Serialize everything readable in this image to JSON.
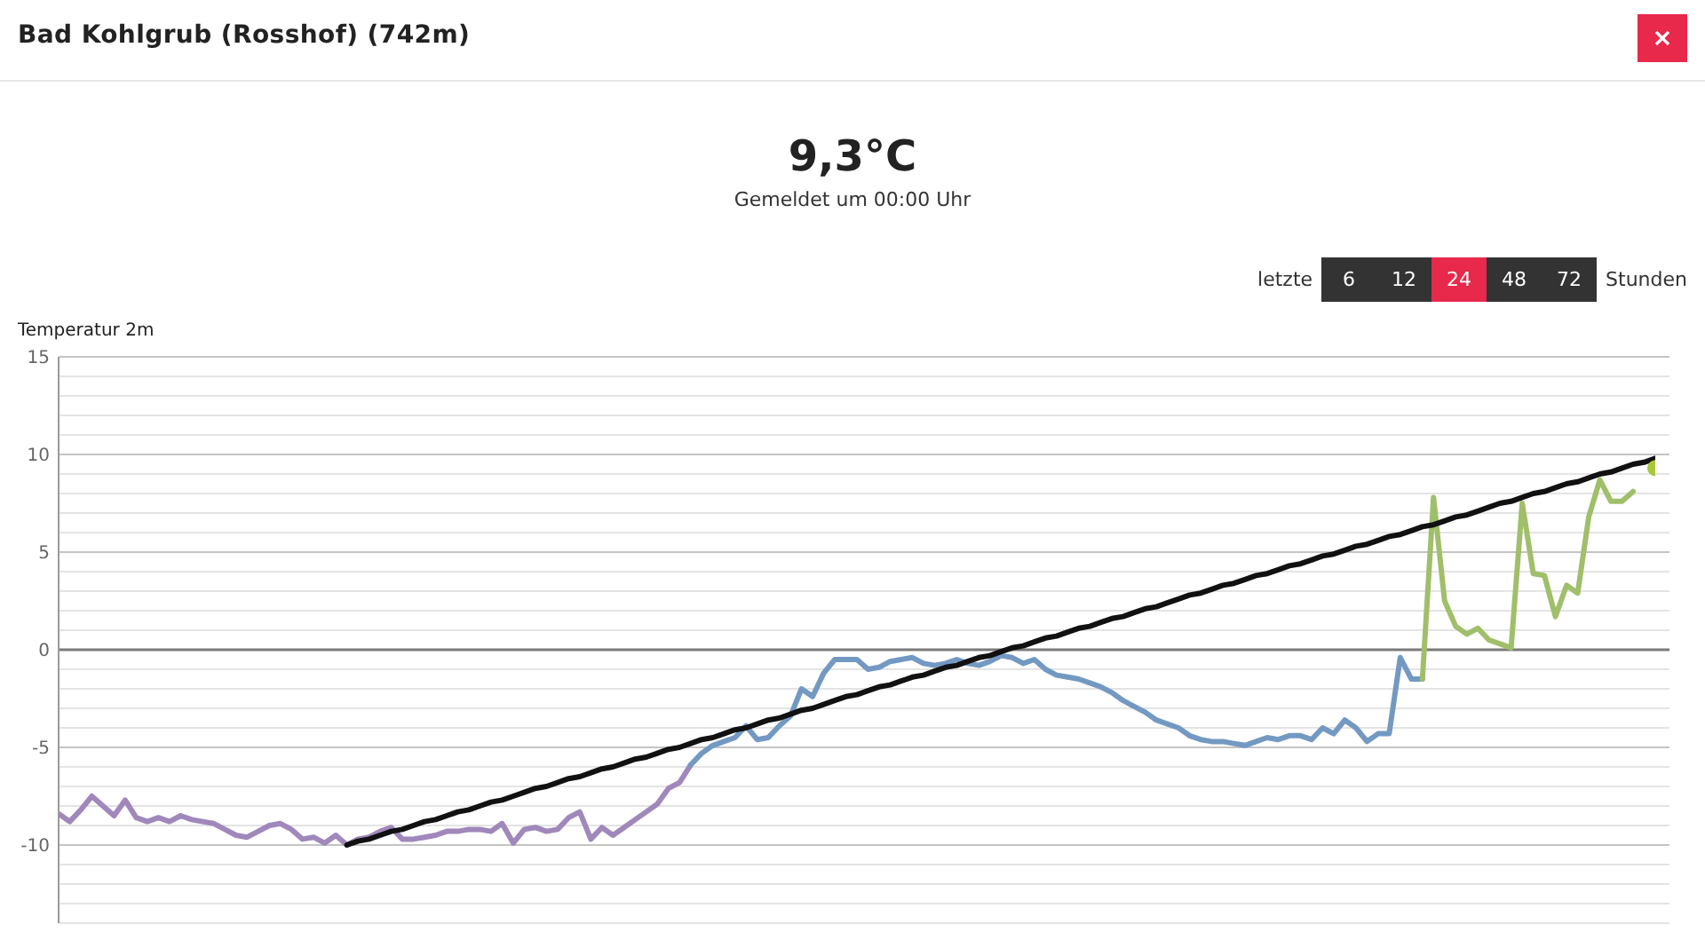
{
  "chart_data": {
    "type": "line",
    "title": "Bad Kohlgrub (Rosshof) (742m)",
    "subtitle": "9,3°C",
    "ylabel": "Temperatur 2m",
    "annotations": [
      "Gemeldet um 00:00 Uhr",
      "letzte",
      "6",
      "12",
      "24",
      "48",
      "72",
      "Stunden"
    ],
    "categories": [
      null,
      null,
      null,
      null,
      null,
      null,
      null,
      null,
      null,
      null,
      null,
      null,
      null,
      null,
      null,
      null,
      null,
      null,
      null,
      null,
      null,
      null,
      null,
      null,
      null,
      null,
      null,
      null,
      null,
      null,
      null,
      null,
      null,
      null,
      null,
      null,
      null,
      null,
      null,
      null,
      null,
      null,
      null,
      null,
      null,
      null,
      null,
      null,
      null,
      null,
      null,
      null,
      null,
      null,
      null,
      null,
      null,
      null,
      null,
      null,
      null,
      null,
      null,
      null,
      null,
      null,
      null,
      null,
      null,
      null,
      null,
      null,
      null,
      null,
      null,
      null,
      null,
      null,
      null,
      null,
      null,
      null,
      null,
      null,
      null,
      null,
      null,
      null,
      null,
      null,
      null,
      null,
      null,
      null,
      null,
      null,
      null,
      null,
      null,
      null,
      null,
      null,
      null,
      null,
      null,
      null,
      null,
      null,
      null,
      null,
      null,
      null,
      null,
      null,
      null,
      null,
      null,
      null,
      null,
      null,
      null,
      null,
      null,
      null,
      null,
      null,
      null,
      null,
      null,
      null,
      null,
      null,
      null,
      null,
      null,
      null,
      null,
      null,
      null,
      null,
      null,
      null,
      null,
      null,
      null
    ],
    "series": [
      {
        "color": "#a088bb",
        "values": [
          -8.4,
          -8.8,
          -8.2,
          -7.5,
          -8.0,
          -8.5,
          -7.7,
          -8.6,
          -8.8,
          -8.6,
          -8.8,
          -8.5,
          -8.7,
          -8.8,
          -8.9,
          -9.2,
          -9.5,
          -9.6,
          -9.3,
          -9.0,
          -8.9,
          -9.2,
          -9.7,
          -9.6,
          -9.9,
          -9.5,
          -10.0,
          -9.7,
          -9.6,
          -9.3,
          -9.1,
          -9.7,
          -9.7,
          -9.6,
          -9.5,
          -9.3,
          -9.3,
          -9.2,
          -9.2,
          -9.3,
          -8.9,
          -9.9,
          -9.2,
          -9.1,
          -9.3,
          -9.2,
          -8.6,
          -8.3,
          -9.7,
          -9.1,
          -9.5,
          -9.1,
          -8.7,
          -8.3,
          -7.9,
          -7.1,
          -6.8,
          -5.9,
          null,
          null,
          null,
          null,
          null,
          null,
          null,
          null,
          null,
          null,
          null,
          null,
          null,
          null,
          null,
          null,
          null,
          null,
          null,
          null,
          null,
          null,
          null,
          null,
          null,
          null,
          null,
          null,
          null,
          null,
          null,
          null,
          null,
          null,
          null,
          null,
          null,
          null,
          null,
          null,
          null,
          null,
          null,
          null,
          null,
          null,
          null,
          null,
          null,
          null,
          null,
          null,
          null,
          null,
          null,
          null,
          null,
          null,
          null,
          null,
          null,
          null,
          null,
          null,
          null,
          null,
          null,
          null,
          null,
          null,
          null,
          null,
          null,
          null,
          null,
          null,
          null,
          null,
          null,
          null,
          null,
          null,
          null,
          null,
          null,
          null,
          null
        ]
      },
      {
        "color": "#7399c3",
        "values": [
          null,
          null,
          null,
          null,
          null,
          null,
          null,
          null,
          null,
          null,
          null,
          null,
          null,
          null,
          null,
          null,
          null,
          null,
          null,
          null,
          null,
          null,
          null,
          null,
          null,
          null,
          null,
          null,
          null,
          null,
          null,
          null,
          null,
          null,
          null,
          null,
          null,
          null,
          null,
          null,
          null,
          null,
          null,
          null,
          null,
          null,
          null,
          null,
          null,
          null,
          null,
          null,
          null,
          null,
          null,
          null,
          null,
          -5.9,
          -5.3,
          -4.9,
          -4.7,
          -4.5,
          -3.9,
          -4.6,
          -4.5,
          -3.9,
          -3.4,
          -2.0,
          -2.4,
          -1.2,
          -0.5,
          -0.5,
          -0.5,
          -1.0,
          -0.9,
          -0.6,
          -0.5,
          -0.4,
          -0.7,
          -0.8,
          -0.7,
          -0.5,
          -0.7,
          -0.8,
          -0.6,
          -0.3,
          -0.4,
          -0.7,
          -0.5,
          -1.0,
          -1.3,
          -1.4,
          -1.5,
          -1.7,
          -1.9,
          -2.2,
          -2.6,
          -2.9,
          -3.2,
          -3.6,
          -3.8,
          -4.0,
          -4.4,
          -4.6,
          -4.7,
          -4.7,
          -4.8,
          -4.9,
          -4.7,
          -4.5,
          -4.6,
          -4.4,
          -4.4,
          -4.6,
          -4.0,
          -4.3,
          -3.6,
          -4.0,
          -4.7,
          -4.3,
          -4.3,
          -0.4,
          -1.5,
          -1.5,
          null,
          null,
          null,
          null,
          null,
          null,
          null,
          null,
          null,
          null,
          null,
          null,
          null,
          null,
          null,
          null,
          null,
          null,
          null,
          null,
          null
        ]
      },
      {
        "color": "#9fbf6a",
        "values": [
          null,
          null,
          null,
          null,
          null,
          null,
          null,
          null,
          null,
          null,
          null,
          null,
          null,
          null,
          null,
          null,
          null,
          null,
          null,
          null,
          null,
          null,
          null,
          null,
          null,
          null,
          null,
          null,
          null,
          null,
          null,
          null,
          null,
          null,
          null,
          null,
          null,
          null,
          null,
          null,
          null,
          null,
          null,
          null,
          null,
          null,
          null,
          null,
          null,
          null,
          null,
          null,
          null,
          null,
          null,
          null,
          null,
          null,
          null,
          null,
          null,
          null,
          null,
          null,
          null,
          null,
          null,
          null,
          null,
          null,
          null,
          null,
          null,
          null,
          null,
          null,
          null,
          null,
          null,
          null,
          null,
          null,
          null,
          null,
          null,
          null,
          null,
          null,
          null,
          null,
          null,
          null,
          null,
          null,
          null,
          null,
          null,
          null,
          null,
          null,
          null,
          null,
          null,
          null,
          null,
          null,
          null,
          null,
          null,
          null,
          null,
          null,
          null,
          null,
          null,
          null,
          null,
          null,
          null,
          null,
          null,
          null,
          null,
          -1.5,
          7.8,
          2.5,
          1.2,
          0.8,
          1.1,
          0.5,
          0.3,
          0.1,
          7.5,
          3.9,
          3.8,
          1.7,
          3.3,
          2.9,
          6.8,
          8.7,
          7.6,
          7.6,
          8.1,
          null,
          null
        ]
      },
      {
        "color": "#111111",
        "values": [
          null,
          null,
          null,
          null,
          null,
          null,
          null,
          null,
          null,
          null,
          null,
          null,
          null,
          null,
          null,
          null,
          null,
          null,
          null,
          null,
          null,
          null,
          null,
          null,
          null,
          null,
          -10.0,
          -9.8,
          -9.7,
          -9.5,
          -9.3,
          -9.2,
          -9.0,
          -8.8,
          -8.7,
          -8.5,
          -8.3,
          -8.2,
          -8.0,
          -7.8,
          -7.7,
          -7.5,
          -7.3,
          -7.1,
          -7.0,
          -6.8,
          -6.6,
          -6.5,
          -6.3,
          -6.1,
          -6.0,
          -5.8,
          -5.6,
          -5.5,
          -5.3,
          -5.1,
          -5.0,
          -4.8,
          -4.6,
          -4.5,
          -4.3,
          -4.1,
          -4.0,
          -3.8,
          -3.6,
          -3.5,
          -3.3,
          -3.1,
          -3.0,
          -2.8,
          -2.6,
          -2.4,
          -2.3,
          -2.1,
          -1.9,
          -1.8,
          -1.6,
          -1.4,
          -1.3,
          -1.1,
          -0.9,
          -0.8,
          -0.6,
          -0.4,
          -0.3,
          -0.1,
          0.1,
          0.2,
          0.4,
          0.6,
          0.7,
          0.9,
          1.1,
          1.2,
          1.4,
          1.6,
          1.7,
          1.9,
          2.1,
          2.2,
          2.4,
          2.6,
          2.8,
          2.9,
          3.1,
          3.3,
          3.4,
          3.6,
          3.8,
          3.9,
          4.1,
          4.3,
          4.4,
          4.6,
          4.8,
          4.9,
          5.1,
          5.3,
          5.4,
          5.6,
          5.8,
          5.9,
          6.1,
          6.3,
          6.4,
          6.6,
          6.8,
          6.9,
          7.1,
          7.3,
          7.5,
          7.6,
          7.8,
          8.0,
          8.1,
          8.3,
          8.5,
          8.6,
          8.8,
          9.0,
          9.1,
          9.3,
          9.5,
          9.6,
          9.8
        ]
      },
      {
        "type": "scatter",
        "color": "#a8c83a",
        "values": [
          null,
          null,
          null,
          null,
          null,
          null,
          null,
          null,
          null,
          null,
          null,
          null,
          null,
          null,
          null,
          null,
          null,
          null,
          null,
          null,
          null,
          null,
          null,
          null,
          null,
          null,
          null,
          null,
          null,
          null,
          null,
          null,
          null,
          null,
          null,
          null,
          null,
          null,
          null,
          null,
          null,
          null,
          null,
          null,
          null,
          null,
          null,
          null,
          null,
          null,
          null,
          null,
          null,
          null,
          null,
          null,
          null,
          null,
          null,
          null,
          null,
          null,
          null,
          null,
          null,
          null,
          null,
          null,
          null,
          null,
          null,
          null,
          null,
          null,
          null,
          null,
          null,
          null,
          null,
          null,
          null,
          null,
          null,
          null,
          null,
          null,
          null,
          null,
          null,
          null,
          null,
          null,
          null,
          null,
          null,
          null,
          null,
          null,
          null,
          null,
          null,
          null,
          null,
          null,
          null,
          null,
          null,
          null,
          null,
          null,
          null,
          null,
          null,
          null,
          null,
          null,
          null,
          null,
          null,
          null,
          null,
          null,
          null,
          null,
          null,
          null,
          null,
          null,
          null,
          null,
          null,
          null,
          null,
          null,
          null,
          null,
          null,
          null,
          null,
          null,
          null,
          null,
          null,
          null,
          9.3
        ]
      }
    ],
    "ylim": [
      -14,
      15
    ],
    "yticks": [
      {
        "value": -14,
        "label": null
      },
      {
        "value": -13,
        "label": null
      },
      {
        "value": -12,
        "label": null
      },
      {
        "value": -11,
        "label": null
      },
      -10,
      {
        "value": -9,
        "label": null
      },
      {
        "value": -8,
        "label": null
      },
      {
        "value": -7,
        "label": null
      },
      {
        "value": -6,
        "label": null
      },
      -5,
      {
        "value": -4,
        "label": null
      },
      {
        "value": -3,
        "label": null
      },
      {
        "value": -2,
        "label": null
      },
      {
        "value": -1,
        "label": null
      },
      0,
      {
        "value": 1,
        "label": null
      },
      {
        "value": 2,
        "label": null
      },
      {
        "value": 3,
        "label": null
      },
      {
        "value": 4,
        "label": null
      },
      5,
      {
        "value": 6,
        "label": null
      },
      {
        "value": 7,
        "label": null
      },
      {
        "value": 8,
        "label": null
      },
      {
        "value": 9,
        "label": null
      },
      10,
      {
        "value": 11,
        "label": null
      },
      {
        "value": 12,
        "label": null
      },
      {
        "value": 13,
        "label": null
      },
      {
        "value": 14,
        "label": null
      },
      15
    ],
    "tick_labels": "y",
    "grid": "y",
    "ref_lines": [
      {
        "axis": "y",
        "value": 0,
        "color": "#7a7a7a"
      }
    ]
  }
}
